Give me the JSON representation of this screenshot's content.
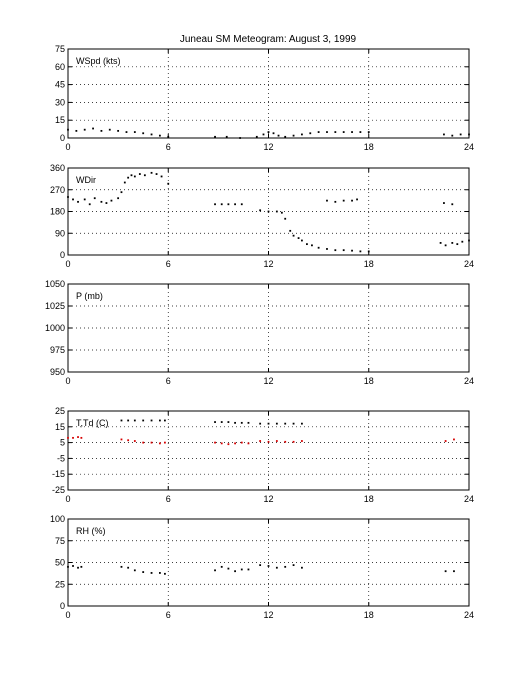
{
  "title": "Juneau SM Meteogram:     August  3, 1999",
  "colors": {
    "dew": "#d60000",
    "trace": "#000000",
    "grid": "#000000"
  },
  "chart_data": [
    {
      "type": "scatter",
      "label": "WSpd (kts)",
      "xlim": [
        0,
        24
      ],
      "xticks": [
        "0",
        "6",
        "12",
        "18",
        "24"
      ],
      "ylim": [
        0,
        75
      ],
      "yticks": [
        "0",
        "15",
        "30",
        "45",
        "60",
        "75"
      ],
      "grid": true,
      "series": [
        {
          "color": "#000000",
          "points": [
            [
              0,
              7
            ],
            [
              0.5,
              6
            ],
            [
              1,
              7
            ],
            [
              1.5,
              8
            ],
            [
              2,
              6
            ],
            [
              2.5,
              7
            ],
            [
              3,
              6
            ],
            [
              3.5,
              5
            ],
            [
              4,
              5
            ],
            [
              4.5,
              4
            ],
            [
              5,
              3
            ],
            [
              5.5,
              2
            ],
            [
              6,
              1
            ],
            [
              8.8,
              1
            ],
            [
              9.5,
              1
            ],
            [
              10.3,
              0
            ],
            [
              11.3,
              1
            ],
            [
              11.7,
              3
            ],
            [
              12,
              5
            ],
            [
              12.3,
              4
            ],
            [
              12.6,
              2
            ],
            [
              13,
              1
            ],
            [
              13.5,
              2
            ],
            [
              14,
              3
            ],
            [
              14.5,
              4
            ],
            [
              15,
              5
            ],
            [
              15.5,
              5
            ],
            [
              16,
              5
            ],
            [
              16.5,
              5
            ],
            [
              17,
              5
            ],
            [
              17.5,
              5
            ],
            [
              18,
              5
            ],
            [
              22.5,
              3
            ],
            [
              23,
              2
            ],
            [
              23.5,
              3
            ],
            [
              24,
              3
            ]
          ]
        }
      ]
    },
    {
      "type": "scatter",
      "label": "WDir",
      "xlim": [
        0,
        24
      ],
      "xticks": [
        "0",
        "6",
        "12",
        "18",
        "24"
      ],
      "ylim": [
        0,
        360
      ],
      "yticks": [
        "0",
        "90",
        "180",
        "270",
        "360"
      ],
      "grid": true,
      "series": [
        {
          "color": "#000000",
          "points": [
            [
              0,
              240
            ],
            [
              0.3,
              230
            ],
            [
              0.6,
              220
            ],
            [
              1,
              230
            ],
            [
              1.3,
              210
            ],
            [
              1.6,
              235
            ],
            [
              2,
              220
            ],
            [
              2.3,
              215
            ],
            [
              2.6,
              225
            ],
            [
              3,
              235
            ],
            [
              3.2,
              260
            ],
            [
              3.4,
              300
            ],
            [
              3.6,
              320
            ],
            [
              3.8,
              330
            ],
            [
              4,
              325
            ],
            [
              4.3,
              335
            ],
            [
              4.6,
              330
            ],
            [
              5,
              340
            ],
            [
              5.3,
              335
            ],
            [
              5.6,
              325
            ],
            [
              6,
              295
            ],
            [
              8.8,
              210
            ],
            [
              9.2,
              210
            ],
            [
              9.6,
              210
            ],
            [
              10,
              210
            ],
            [
              10.4,
              210
            ],
            [
              11.5,
              185
            ],
            [
              12,
              180
            ],
            [
              12.5,
              180
            ],
            [
              12.8,
              175
            ],
            [
              13,
              150
            ],
            [
              13.3,
              100
            ],
            [
              13.5,
              80
            ],
            [
              13.8,
              70
            ],
            [
              14,
              60
            ],
            [
              14.3,
              45
            ],
            [
              14.6,
              40
            ],
            [
              15,
              30
            ],
            [
              15.5,
              25
            ],
            [
              16,
              20
            ],
            [
              16.5,
              20
            ],
            [
              17,
              18
            ],
            [
              17.5,
              15
            ],
            [
              18,
              15
            ],
            [
              15.5,
              225
            ],
            [
              16,
              220
            ],
            [
              16.5,
              225
            ],
            [
              17,
              225
            ],
            [
              17.3,
              230
            ],
            [
              22.5,
              215
            ],
            [
              23,
              210
            ],
            [
              22.3,
              50
            ],
            [
              22.6,
              40
            ],
            [
              23,
              50
            ],
            [
              23.3,
              45
            ],
            [
              23.6,
              55
            ],
            [
              24,
              60
            ]
          ]
        }
      ]
    },
    {
      "type": "scatter",
      "label": "P (mb)",
      "xlim": [
        0,
        24
      ],
      "xticks": [
        "0",
        "6",
        "12",
        "18",
        "24"
      ],
      "ylim": [
        950,
        1050
      ],
      "yticks": [
        "950",
        "975",
        "1000",
        "1025",
        "1050"
      ],
      "grid": true,
      "series": []
    },
    {
      "type": "scatter",
      "label": "T,Td (C)",
      "xlim": [
        0,
        24
      ],
      "xticks": [
        "0",
        "6",
        "12",
        "18",
        "24"
      ],
      "ylim": [
        -25,
        25
      ],
      "yticks": [
        "-25",
        "-15",
        "-5",
        "5",
        "15",
        "25"
      ],
      "grid": true,
      "series": [
        {
          "color": "#000000",
          "points": [
            [
              3.2,
              19
            ],
            [
              3.6,
              19
            ],
            [
              4,
              19
            ],
            [
              4.5,
              19
            ],
            [
              5,
              19
            ],
            [
              5.5,
              19
            ],
            [
              5.8,
              19
            ],
            [
              8.8,
              18
            ],
            [
              9.2,
              18
            ],
            [
              9.6,
              18
            ],
            [
              10,
              17.5
            ],
            [
              10.4,
              17.5
            ],
            [
              10.8,
              17.5
            ],
            [
              11.5,
              17
            ],
            [
              12,
              17
            ],
            [
              12.5,
              17
            ],
            [
              13,
              17
            ],
            [
              13.5,
              17
            ],
            [
              14,
              17
            ]
          ]
        },
        {
          "color": "#d60000",
          "points": [
            [
              0,
              8
            ],
            [
              0.3,
              8
            ],
            [
              0.6,
              8.5
            ],
            [
              0.8,
              8
            ],
            [
              3.2,
              7
            ],
            [
              3.6,
              6.5
            ],
            [
              4,
              6
            ],
            [
              4.5,
              5
            ],
            [
              5,
              5
            ],
            [
              5.5,
              4.5
            ],
            [
              5.8,
              5
            ],
            [
              8.8,
              5
            ],
            [
              9.2,
              4.5
            ],
            [
              9.6,
              4
            ],
            [
              10,
              4.5
            ],
            [
              10.4,
              5
            ],
            [
              10.8,
              4.5
            ],
            [
              11.5,
              6
            ],
            [
              12,
              5.5
            ],
            [
              12.5,
              6
            ],
            [
              13,
              5.5
            ],
            [
              13.5,
              5.5
            ],
            [
              14,
              6
            ],
            [
              22.6,
              6
            ],
            [
              23.1,
              7
            ]
          ]
        }
      ]
    },
    {
      "type": "scatter",
      "label": "RH (%)",
      "xlim": [
        0,
        24
      ],
      "xticks": [
        "0",
        "6",
        "12",
        "18",
        "24"
      ],
      "ylim": [
        0,
        100
      ],
      "yticks": [
        "0",
        "25",
        "50",
        "75",
        "100"
      ],
      "grid": true,
      "series": [
        {
          "color": "#000000",
          "points": [
            [
              0,
              45
            ],
            [
              0.3,
              46
            ],
            [
              0.6,
              44
            ],
            [
              0.8,
              45
            ],
            [
              3.2,
              45
            ],
            [
              3.6,
              44
            ],
            [
              4,
              41
            ],
            [
              4.5,
              39
            ],
            [
              5,
              38
            ],
            [
              5.5,
              38
            ],
            [
              5.8,
              37
            ],
            [
              8.8,
              41
            ],
            [
              9.2,
              45
            ],
            [
              9.6,
              43
            ],
            [
              10,
              40
            ],
            [
              10.4,
              42
            ],
            [
              10.8,
              42
            ],
            [
              11.5,
              47
            ],
            [
              12,
              46
            ],
            [
              12.5,
              44
            ],
            [
              13,
              45
            ],
            [
              13.5,
              47
            ],
            [
              14,
              44
            ],
            [
              22.6,
              40
            ],
            [
              23.1,
              40
            ]
          ]
        }
      ]
    }
  ]
}
